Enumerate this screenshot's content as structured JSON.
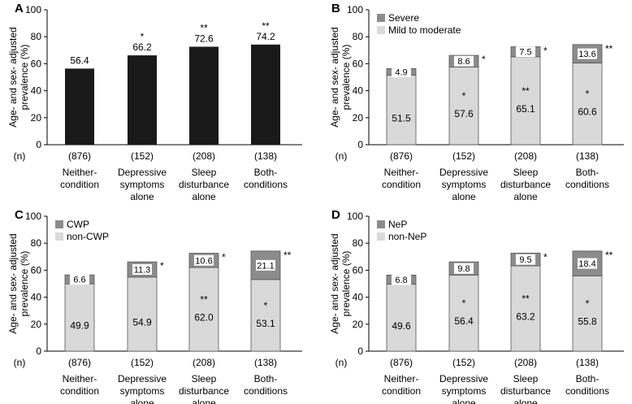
{
  "colors": {
    "black_bar": "#1a1a1a",
    "light_bar": "#d9d9d9",
    "dark_bar": "#8c8c8c",
    "axis": "#000000",
    "bar_outline": "#555555"
  },
  "chart_data": [
    {
      "panel": "A",
      "type": "bar",
      "ylabel": "Age- and sex- adjusted prevalence (%)",
      "ylim": [
        0,
        100
      ],
      "yticks": [
        0,
        20,
        40,
        60,
        80,
        100
      ],
      "n_label": "(n)",
      "categories": [
        {
          "lines": [
            "Neither-",
            "condition"
          ],
          "n": "(876)"
        },
        {
          "lines": [
            "Depressive",
            "symptoms",
            "alone"
          ],
          "n": "(152)"
        },
        {
          "lines": [
            "Sleep",
            "disturbance",
            "alone"
          ],
          "n": "(208)"
        },
        {
          "lines": [
            "Both-",
            "conditions"
          ],
          "n": "(138)"
        }
      ],
      "values": [
        56.4,
        66.2,
        72.6,
        74.2
      ],
      "value_labels": [
        "56.4",
        "66.2",
        "72.6",
        "74.2"
      ],
      "stars": [
        "",
        "*",
        "**",
        "**"
      ]
    },
    {
      "panel": "B",
      "type": "bar",
      "stacked": true,
      "ylabel": "Age- and sex- adjusted prevalence (%)",
      "ylim": [
        0,
        100
      ],
      "yticks": [
        0,
        20,
        40,
        60,
        80,
        100
      ],
      "n_label": "(n)",
      "categories": [
        {
          "lines": [
            "Neither-",
            "condition"
          ],
          "n": "(876)"
        },
        {
          "lines": [
            "Depressive",
            "symptoms",
            "alone"
          ],
          "n": "(152)"
        },
        {
          "lines": [
            "Sleep",
            "disturbance",
            "alone"
          ],
          "n": "(208)"
        },
        {
          "lines": [
            "Both-",
            "conditions"
          ],
          "n": "(138)"
        }
      ],
      "legend": [
        "Severe",
        "Mild to moderate"
      ],
      "series": [
        {
          "name": "Mild to moderate",
          "values": [
            51.5,
            57.6,
            65.1,
            60.6
          ],
          "labels": [
            "51.5",
            "57.6",
            "65.1",
            "60.6"
          ],
          "stars": [
            "",
            "*",
            "**",
            "*"
          ]
        },
        {
          "name": "Severe",
          "values": [
            4.9,
            8.6,
            7.5,
            13.6
          ],
          "labels": [
            "4.9",
            "8.6",
            "7.5",
            "13.6"
          ],
          "stars": [
            "",
            "*",
            "*",
            "**"
          ]
        }
      ]
    },
    {
      "panel": "C",
      "type": "bar",
      "stacked": true,
      "ylabel": "Age- and sex- adjusted prevalence (%)",
      "ylim": [
        0,
        100
      ],
      "yticks": [
        0,
        20,
        40,
        60,
        80,
        100
      ],
      "n_label": "(n)",
      "categories": [
        {
          "lines": [
            "Neither-",
            "condition"
          ],
          "n": "(876)"
        },
        {
          "lines": [
            "Depressive",
            "symptoms",
            "alone"
          ],
          "n": "(152)"
        },
        {
          "lines": [
            "Sleep",
            "disturbance",
            "alone"
          ],
          "n": "(208)"
        },
        {
          "lines": [
            "Both-",
            "conditions"
          ],
          "n": "(138)"
        }
      ],
      "legend": [
        "CWP",
        "non-CWP"
      ],
      "series": [
        {
          "name": "non-CWP",
          "values": [
            49.9,
            54.9,
            62.0,
            53.1
          ],
          "labels": [
            "49.9",
            "54.9",
            "62.0",
            "53.1"
          ],
          "stars": [
            "",
            "",
            "**",
            "*"
          ]
        },
        {
          "name": "CWP",
          "values": [
            6.6,
            11.3,
            10.6,
            21.1
          ],
          "labels": [
            "6.6",
            "11.3",
            "10.6",
            "21.1"
          ],
          "stars": [
            "",
            "*",
            "*",
            "**"
          ]
        }
      ]
    },
    {
      "panel": "D",
      "type": "bar",
      "stacked": true,
      "ylabel": "Age- and sex- adjusted prevalence (%)",
      "ylim": [
        0,
        100
      ],
      "yticks": [
        0,
        20,
        40,
        60,
        80,
        100
      ],
      "n_label": "(n)",
      "categories": [
        {
          "lines": [
            "Neither-",
            "condition"
          ],
          "n": "(876)"
        },
        {
          "lines": [
            "Depressive",
            "symptoms",
            "alone"
          ],
          "n": "(152)"
        },
        {
          "lines": [
            "Sleep",
            "disturbance",
            "alone"
          ],
          "n": "(208)"
        },
        {
          "lines": [
            "Both-",
            "conditions"
          ],
          "n": "(138)"
        }
      ],
      "legend": [
        "NeP",
        "non-NeP"
      ],
      "series": [
        {
          "name": "non-NeP",
          "values": [
            49.6,
            56.4,
            63.2,
            55.8
          ],
          "labels": [
            "49.6",
            "56.4",
            "63.2",
            "55.8"
          ],
          "stars": [
            "",
            "*",
            "**",
            "*"
          ]
        },
        {
          "name": "NeP",
          "values": [
            6.8,
            9.8,
            9.5,
            18.4
          ],
          "labels": [
            "6.8",
            "9.8",
            "9.5",
            "18.4"
          ],
          "stars": [
            "",
            "",
            "*",
            "**"
          ]
        }
      ]
    }
  ]
}
